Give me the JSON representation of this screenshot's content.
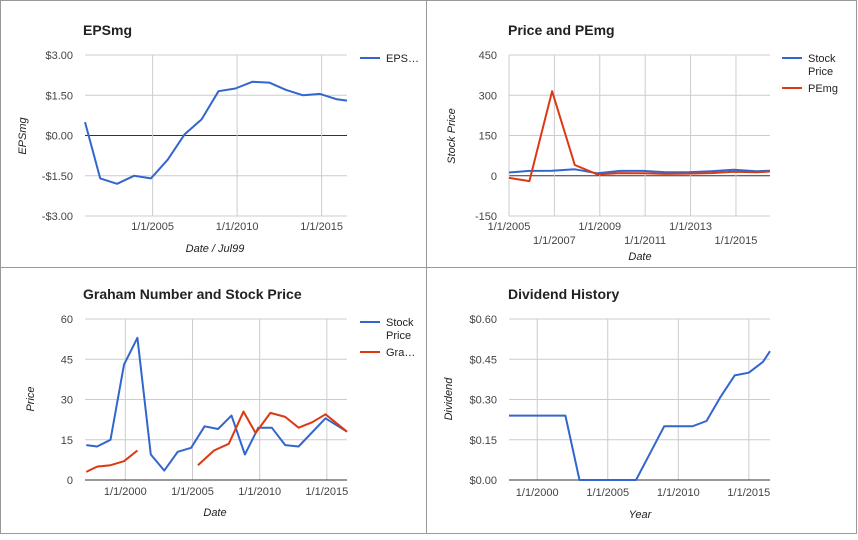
{
  "colors": {
    "blue": "#3366cc",
    "red": "#dc3912",
    "grid": "#cccccc",
    "zero": "#333333",
    "text": "#222222",
    "axis_text": "#444444",
    "border": "#999999"
  },
  "chart_data": [
    {
      "type": "line",
      "title": "EPSmg",
      "xlabel": "Date / Jul99",
      "ylabel": "EPSmg",
      "x_tick_labels": [
        "1/1/2005",
        "1/1/2010",
        "1/1/2015"
      ],
      "x_tick_values": [
        2005,
        2010,
        2015
      ],
      "y_tick_labels": [
        "$3.00",
        "$1.50",
        "$0.00",
        "-$1.50",
        "-$3.00"
      ],
      "y_tick_values": [
        3,
        1.5,
        0,
        -1.5,
        -3
      ],
      "xlim": [
        2001,
        2016.5
      ],
      "ylim": [
        -3,
        3
      ],
      "grid": true,
      "legend_position": "right",
      "series": [
        {
          "name": "EPS…",
          "color": "blue",
          "x": [
            2001,
            2001.9,
            2002.9,
            2003.9,
            2004.9,
            2005.9,
            2006.9,
            2007.9,
            2008.9,
            2009.9,
            2010.9,
            2011.9,
            2012.9,
            2013.9,
            2014.9,
            2015.9,
            2016.5
          ],
          "y": [
            0.5,
            -1.6,
            -1.8,
            -1.5,
            -1.6,
            -0.9,
            0.05,
            0.6,
            1.65,
            1.75,
            2.0,
            1.97,
            1.7,
            1.5,
            1.55,
            1.35,
            1.3
          ]
        }
      ]
    },
    {
      "type": "line",
      "title": "Price and PEmg",
      "xlabel": "Date",
      "ylabel": "Stock Price",
      "x_tick_labels": [
        "1/1/2005",
        "1/1/2007",
        "1/1/2009",
        "1/1/2011",
        "1/1/2013",
        "1/1/2015"
      ],
      "x_tick_values": [
        2005,
        2007,
        2009,
        2011,
        2013,
        2015
      ],
      "y_tick_labels": [
        "450",
        "300",
        "150",
        "0",
        "-150"
      ],
      "y_tick_values": [
        450,
        300,
        150,
        0,
        -150
      ],
      "xlim": [
        2005,
        2016.5
      ],
      "ylim": [
        -150,
        450
      ],
      "grid": true,
      "legend_position": "right",
      "series": [
        {
          "name": "Stock Price",
          "color": "blue",
          "x": [
            2005,
            2005.9,
            2006.9,
            2007.9,
            2008.9,
            2009.9,
            2010.9,
            2011.9,
            2012.9,
            2013.9,
            2014.9,
            2015.9,
            2016.5
          ],
          "y": [
            12,
            18,
            19,
            24,
            9,
            18,
            18,
            13,
            13,
            17,
            22,
            17,
            19
          ]
        },
        {
          "name": "PEmg",
          "color": "red",
          "x": [
            2005,
            2005.9,
            2006.9,
            2007.9,
            2008.9,
            2009.9,
            2010.9,
            2011.9,
            2012.9,
            2013.9,
            2014.9,
            2015.9,
            2016.5
          ],
          "y": [
            -8,
            -20,
            315,
            40,
            5,
            10,
            9,
            7,
            8,
            10,
            15,
            13,
            16
          ]
        }
      ]
    },
    {
      "type": "line",
      "title": "Graham Number and Stock Price",
      "xlabel": "Date",
      "ylabel": "Price",
      "x_tick_labels": [
        "1/1/2000",
        "1/1/2005",
        "1/1/2010",
        "1/1/2015"
      ],
      "x_tick_values": [
        2000,
        2005,
        2010,
        2015
      ],
      "y_tick_labels": [
        "60",
        "45",
        "30",
        "15",
        "0"
      ],
      "y_tick_values": [
        60,
        45,
        30,
        15,
        0
      ],
      "xlim": [
        1997,
        2016.5
      ],
      "ylim": [
        0,
        60
      ],
      "grid": true,
      "legend_position": "right",
      "series": [
        {
          "name": "Stock Price",
          "color": "blue",
          "x": [
            1997.1,
            1997.9,
            1998.9,
            1999.9,
            2000.9,
            2001.9,
            2002.9,
            2003.9,
            2004.9,
            2005.9,
            2006.9,
            2007.9,
            2008.9,
            2009.9,
            2010.9,
            2011.9,
            2012.9,
            2014.9,
            2016.5
          ],
          "y": [
            13,
            12.5,
            15,
            43,
            53,
            9.5,
            3.5,
            10.5,
            12,
            20,
            19,
            24,
            9.5,
            19.5,
            19.5,
            13,
            12.5,
            23,
            18
          ]
        },
        {
          "name": "Gra…",
          "color": "red",
          "x": [
            1997.1,
            1997.9,
            1998.9,
            1999.9,
            2000.9
          ],
          "y": [
            3,
            5,
            5.5,
            7,
            11
          ]
        },
        {
          "name": "Gra…",
          "color": "red",
          "x": [
            2005.4,
            2006.6,
            2007.7,
            2008.8,
            2009.7,
            2010.8,
            2011.9,
            2012.9,
            2013.9,
            2014.9,
            2016.5
          ],
          "y": [
            5.5,
            11,
            13.5,
            25.5,
            17.5,
            25,
            23.5,
            19.5,
            21.5,
            24.5,
            18
          ]
        }
      ]
    },
    {
      "type": "line",
      "title": "Dividend History",
      "xlabel": "Year",
      "ylabel": "Dividend",
      "x_tick_labels": [
        "1/1/2000",
        "1/1/2005",
        "1/1/2010",
        "1/1/2015"
      ],
      "x_tick_values": [
        2000,
        2005,
        2010,
        2015
      ],
      "y_tick_labels": [
        "$0.60",
        "$0.45",
        "$0.30",
        "$0.15",
        "$0.00"
      ],
      "y_tick_values": [
        0.6,
        0.45,
        0.3,
        0.15,
        0
      ],
      "xlim": [
        1998,
        2016.5
      ],
      "ylim": [
        0,
        0.6
      ],
      "grid": true,
      "legend_position": "none",
      "series": [
        {
          "name": "",
          "color": "blue",
          "x": [
            1998,
            1999,
            2000,
            2001,
            2002,
            2003,
            2004,
            2005,
            2006,
            2007,
            2008,
            2009,
            2010,
            2011,
            2012,
            2013,
            2014,
            2015,
            2016,
            2016.5
          ],
          "y": [
            0.24,
            0.24,
            0.24,
            0.24,
            0.24,
            0.0,
            0.0,
            0.0,
            0.0,
            0.0,
            0.1,
            0.2,
            0.2,
            0.2,
            0.22,
            0.31,
            0.39,
            0.4,
            0.44,
            0.48
          ]
        }
      ]
    }
  ]
}
